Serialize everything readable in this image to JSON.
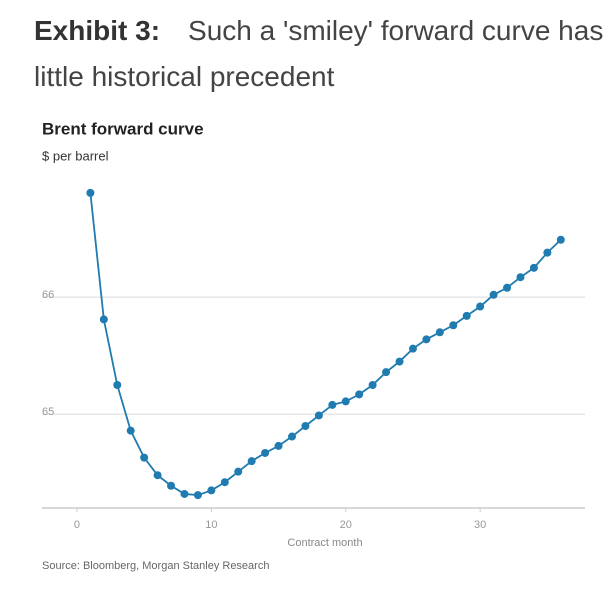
{
  "header": {
    "label": "Exhibit 3:",
    "headline": "Such a 'smiley' forward curve has little historical precedent"
  },
  "chart_data": {
    "type": "line",
    "title": "Brent forward curve",
    "subtitle": "$ per barrel",
    "x_label": "Contract month",
    "x": [
      1,
      2,
      3,
      4,
      5,
      6,
      7,
      8,
      9,
      10,
      11,
      12,
      13,
      14,
      15,
      16,
      17,
      18,
      19,
      20,
      21,
      22,
      23,
      24,
      25,
      26,
      27,
      28,
      29,
      30,
      31,
      32,
      33,
      34,
      35,
      36
    ],
    "series": [
      {
        "name": "Brent",
        "color": "#1f7bb0",
        "values": [
          66.89,
          65.81,
          65.25,
          64.86,
          64.63,
          64.48,
          64.39,
          64.32,
          64.31,
          64.35,
          64.42,
          64.51,
          64.6,
          64.67,
          64.73,
          64.81,
          64.9,
          64.99,
          65.08,
          65.11,
          65.17,
          65.25,
          65.36,
          65.45,
          65.56,
          65.64,
          65.7,
          65.76,
          65.84,
          65.92,
          66.02,
          66.08,
          66.17,
          66.25,
          66.38,
          66.49
        ]
      }
    ],
    "xlim": [
      -2.6,
      37.8
    ],
    "ylim": [
      64.2,
      67.0
    ],
    "xticks": [
      0,
      10,
      20,
      30
    ],
    "yticks": [
      65,
      66
    ],
    "grid": true,
    "source": "Source: Bloomberg, Morgan Stanley Research"
  }
}
